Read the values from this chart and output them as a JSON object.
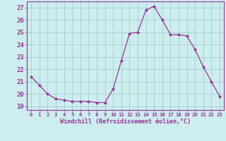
{
  "x": [
    0,
    1,
    2,
    3,
    4,
    5,
    6,
    7,
    8,
    9,
    10,
    11,
    12,
    13,
    14,
    15,
    16,
    17,
    18,
    19,
    20,
    21,
    22,
    23
  ],
  "y": [
    21.4,
    20.7,
    20.0,
    19.6,
    19.5,
    19.4,
    19.4,
    19.4,
    19.3,
    19.3,
    20.4,
    22.7,
    24.9,
    25.0,
    26.8,
    27.1,
    26.0,
    24.8,
    24.8,
    24.7,
    23.6,
    22.2,
    21.0,
    19.8
  ],
  "line_color": "#993399",
  "marker": "D",
  "marker_size": 2.2,
  "bg_color": "#cceeee",
  "grid_color": "#aacccc",
  "ylabel_ticks": [
    19,
    20,
    21,
    22,
    23,
    24,
    25,
    26,
    27
  ],
  "xlabel": "Windchill (Refroidissement éolien,°C)",
  "ylim": [
    18.7,
    27.5
  ],
  "xlim": [
    -0.5,
    23.5
  ],
  "xlabel_fontsize": 6.0,
  "ytick_fontsize": 6.5,
  "xtick_fontsize": 5.2
}
